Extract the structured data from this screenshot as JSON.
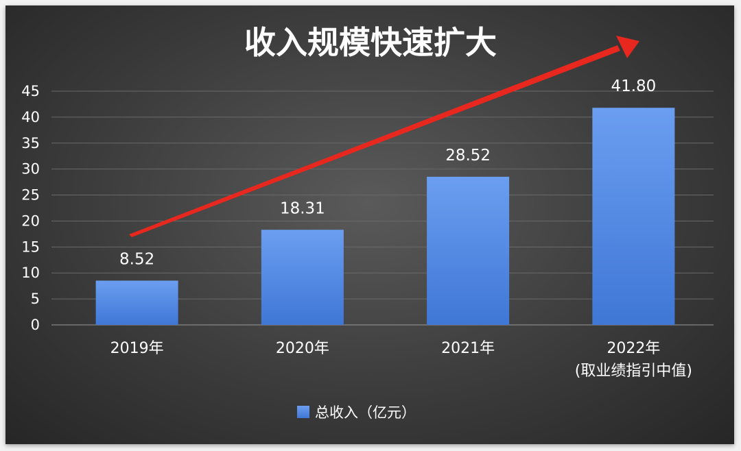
{
  "chart_data": {
    "type": "bar",
    "title": "收入规模快速扩大",
    "categories": [
      {
        "line1": "2019年",
        "line2": ""
      },
      {
        "line1": "2020年",
        "line2": ""
      },
      {
        "line1": "2021年",
        "line2": ""
      },
      {
        "line1": "2022年",
        "line2": "(取业绩指引中值)"
      }
    ],
    "series": [
      {
        "name": "总收入（亿元）",
        "values": [
          8.52,
          18.31,
          28.52,
          41.8
        ],
        "color": "#4f86e0"
      }
    ],
    "data_labels": [
      "8.52",
      "18.31",
      "28.52",
      "41.80"
    ],
    "yticks": [
      "0",
      "5",
      "10",
      "15",
      "20",
      "25",
      "30",
      "35",
      "40",
      "45"
    ],
    "ylim": [
      0,
      45
    ],
    "grid": true,
    "legend": "bottom",
    "trend_arrow": {
      "color": "#e8281e"
    }
  }
}
